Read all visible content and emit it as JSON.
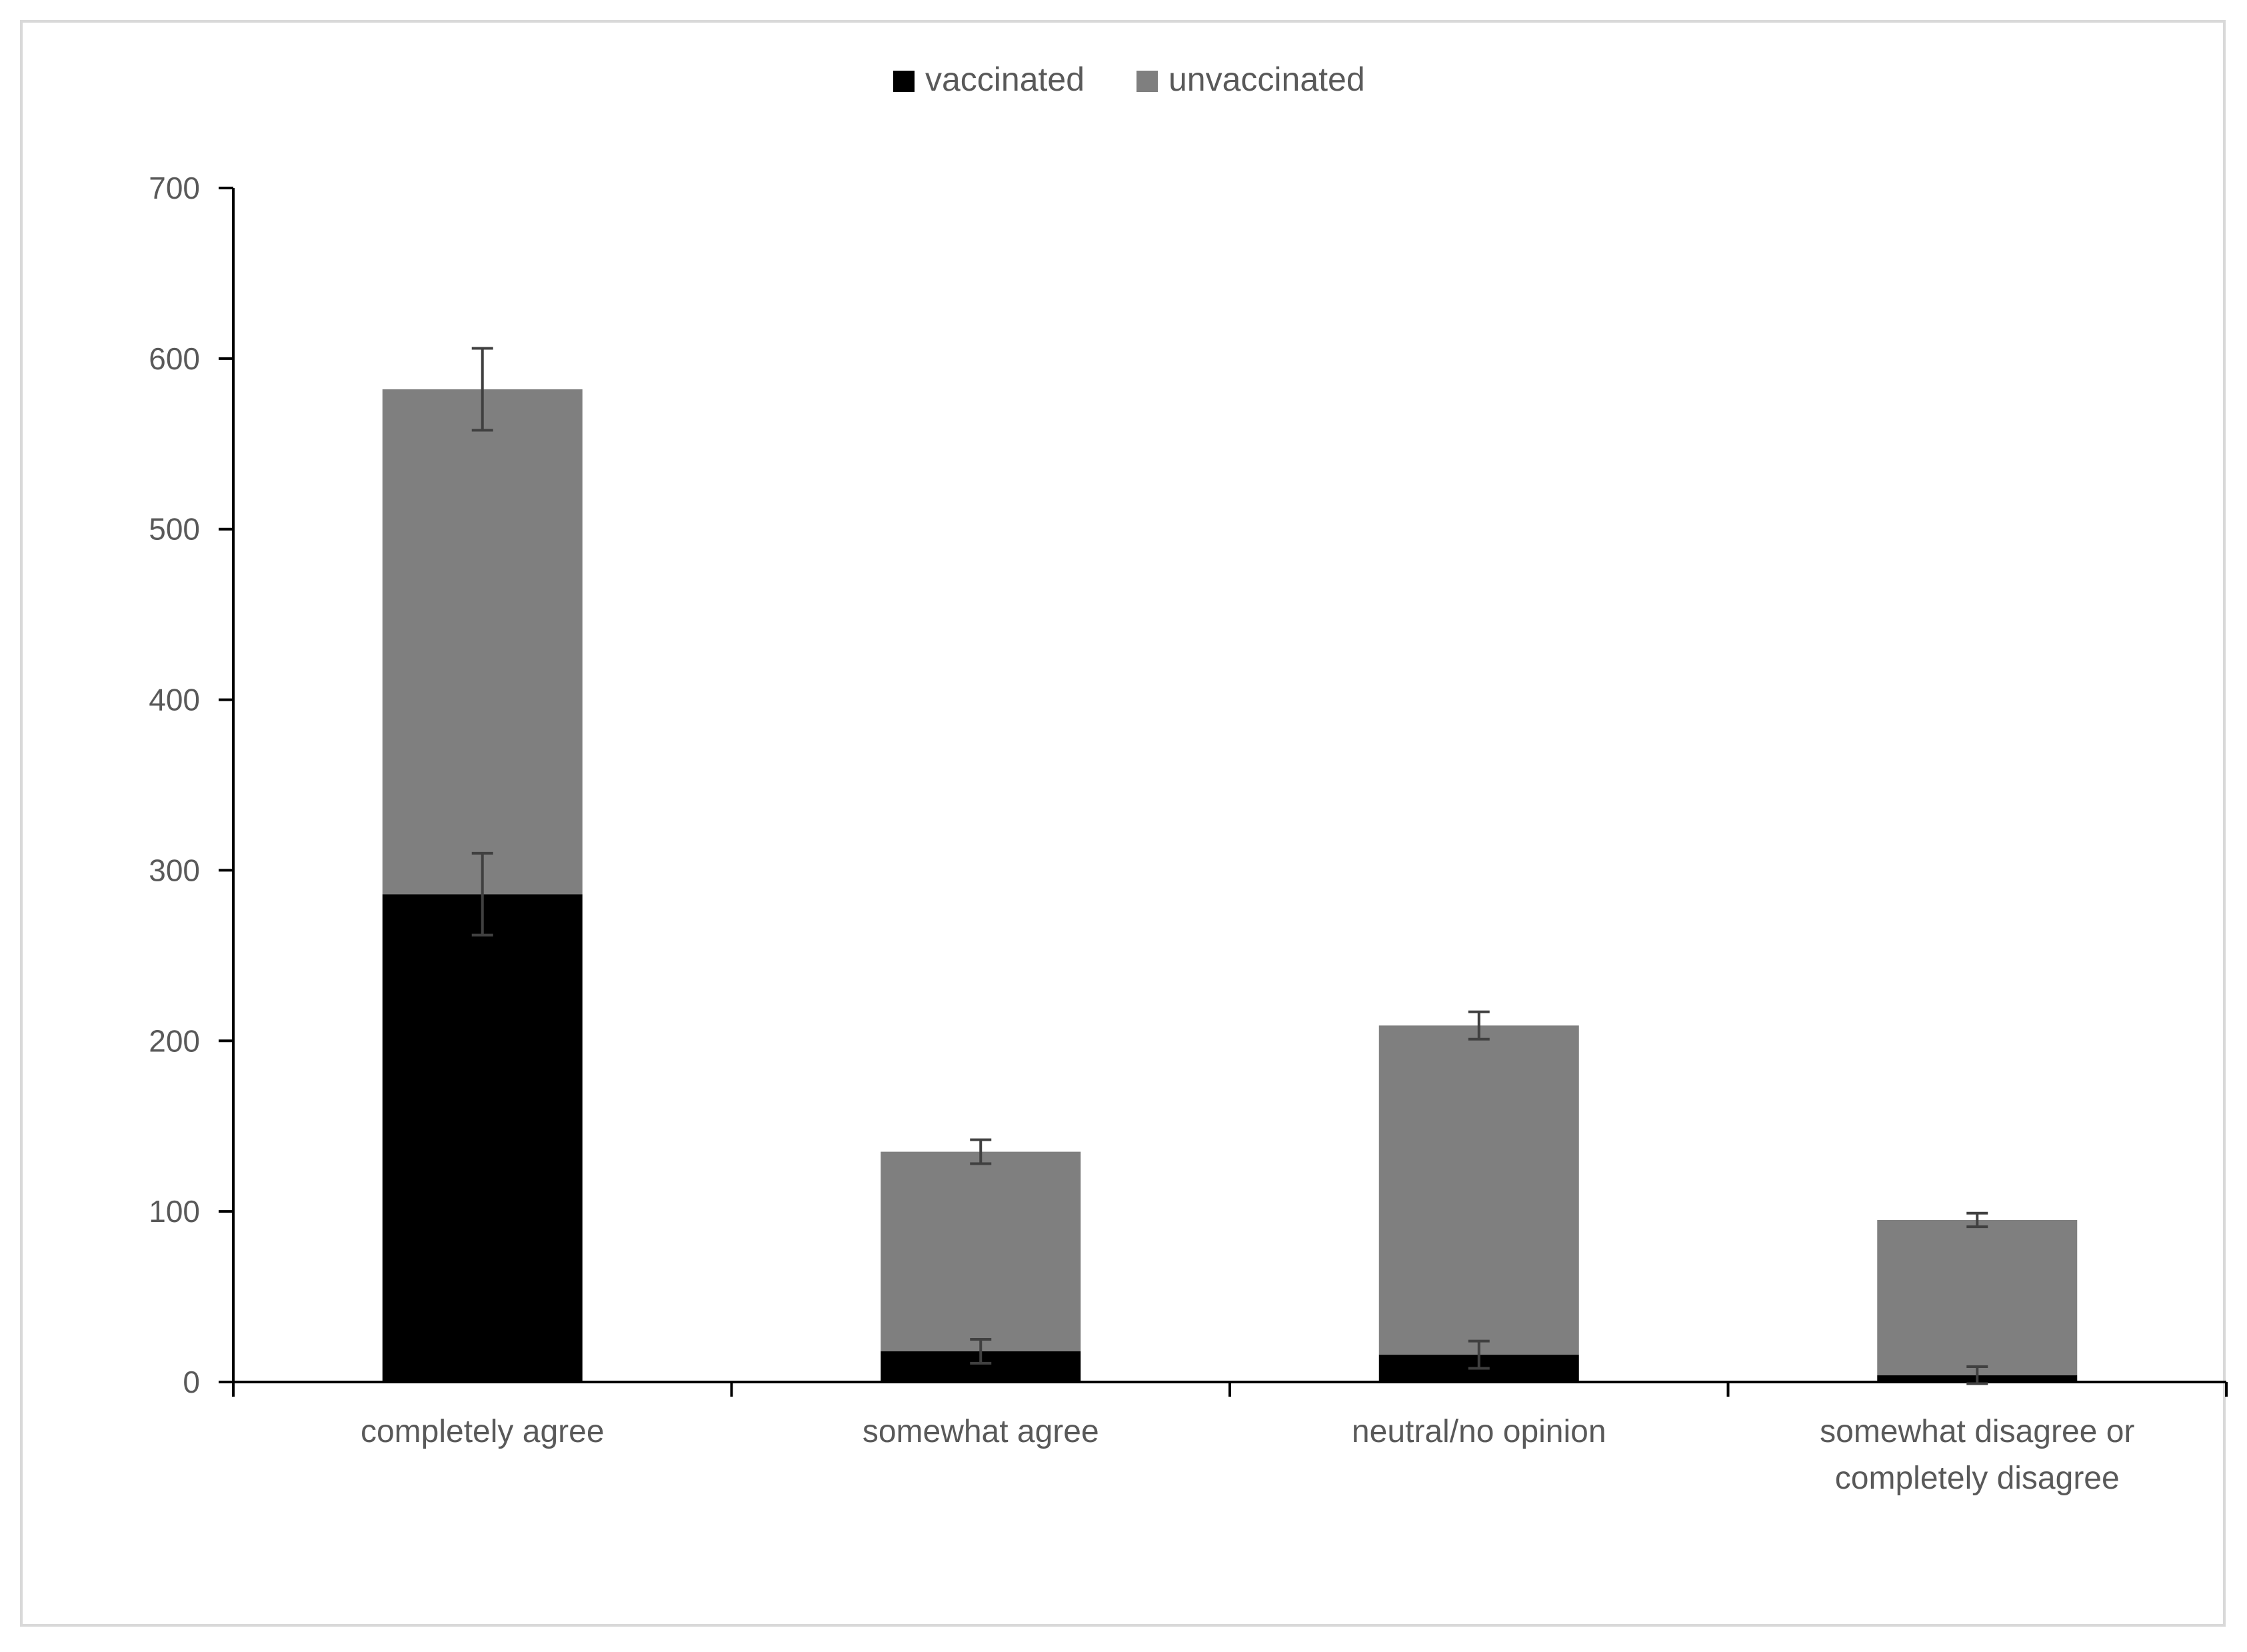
{
  "chart_data": {
    "type": "bar",
    "stacked": true,
    "categories": [
      [
        "completely agree"
      ],
      [
        "somewhat agree"
      ],
      [
        "neutral/no opinion"
      ],
      [
        "somewhat disagree or",
        "completely disagree"
      ]
    ],
    "series": [
      {
        "name": "vaccinated",
        "color": "#000000",
        "values": [
          286,
          18,
          16,
          4
        ],
        "error": [
          24,
          7,
          8,
          5
        ]
      },
      {
        "name": "unvaccinated",
        "color": "#7f7f7f",
        "values": [
          296,
          117,
          193,
          91
        ],
        "error": [
          24,
          7,
          8,
          4
        ]
      }
    ],
    "ylim": [
      0,
      700
    ],
    "yticks": [
      0,
      100,
      200,
      300,
      400,
      500,
      600,
      700
    ],
    "yticklabels": [
      "0",
      "100",
      "200",
      "300",
      "400",
      "500",
      "600",
      "700"
    ],
    "legend_position": "top-center",
    "grid": false,
    "axis_color": "#000000",
    "error_bar_color": "#404040"
  }
}
